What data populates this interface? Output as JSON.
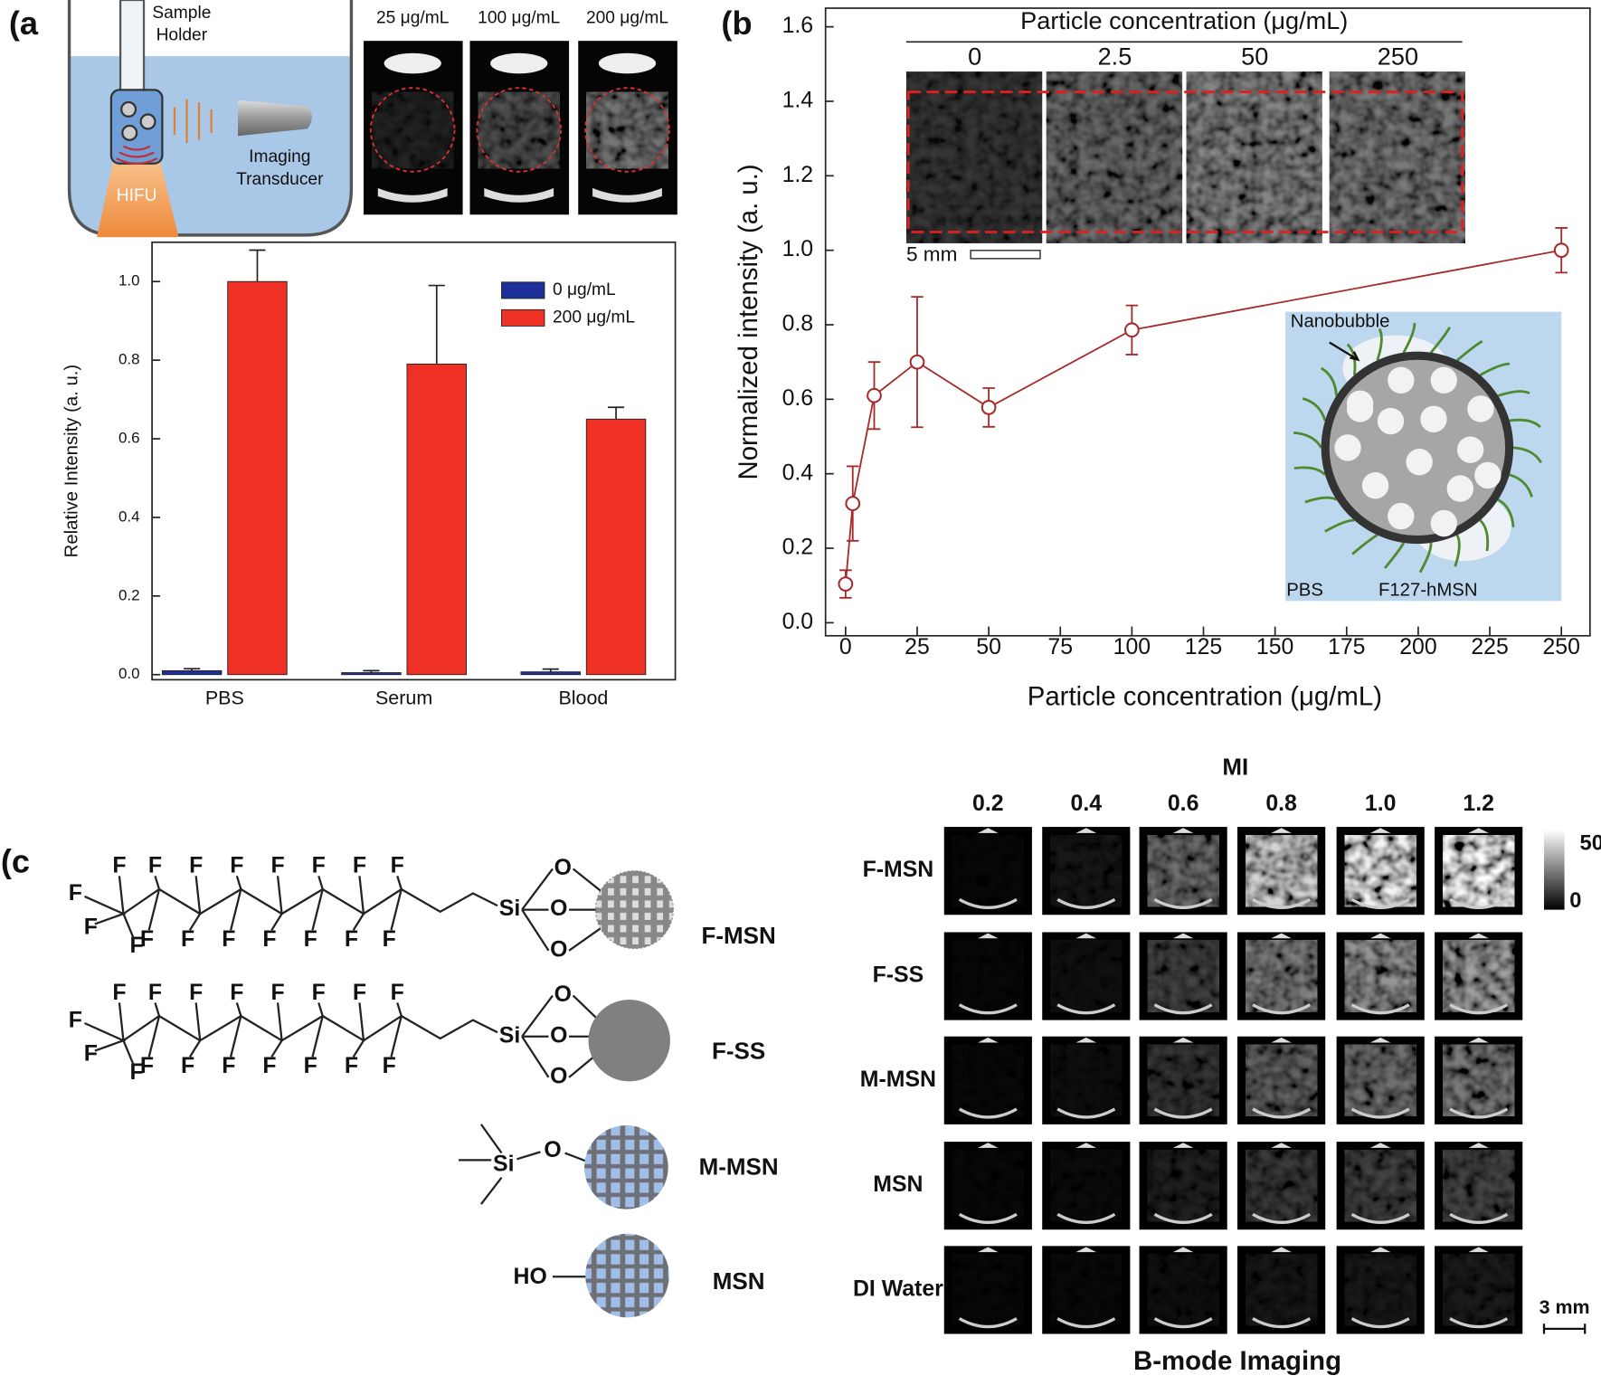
{
  "figure": {
    "panel_labels": [
      "(a",
      "(b",
      "(c"
    ]
  },
  "panel_a": {
    "schematic": {
      "sample_holder": [
        "Sample",
        "Holder"
      ],
      "transducer": [
        "Imaging",
        "Transducer"
      ],
      "hifu": "HIFU"
    },
    "images": [
      "25 μg/mL",
      "100 μg/mL",
      "200 μg/mL"
    ]
  },
  "chart_data": [
    {
      "type": "bar",
      "ylabel": "Relative Intensity (a. u.)",
      "categories": [
        "PBS",
        "Serum",
        "Blood"
      ],
      "series": [
        {
          "name": "0 μg/mL",
          "color": "#1f2f99",
          "values": [
            0.01,
            0.005,
            0.007
          ],
          "errors": [
            0.005,
            0.005,
            0.007
          ]
        },
        {
          "name": "200 μg/mL",
          "color": "#ee3124",
          "values": [
            1.0,
            0.79,
            0.65
          ],
          "errors": [
            0.08,
            0.2,
            0.03
          ]
        }
      ],
      "ylim": [
        -0.013,
        1.1
      ],
      "yticks": [
        {
          "value": 0,
          "label": "0.0"
        },
        0.2,
        0.4,
        0.6,
        0.8,
        {
          "value": 1,
          "label": "1.0"
        }
      ],
      "legend": "upper right"
    },
    {
      "type": "line",
      "xlabel": "Particle concentration (μg/mL)",
      "ylabel": "Normalized intensity (a. u.)",
      "color": "#a52a2a",
      "x": [
        0,
        2.5,
        10,
        25,
        50,
        100,
        250
      ],
      "values": [
        0.104,
        0.32,
        0.61,
        0.7,
        0.578,
        0.786,
        1.0
      ],
      "errors": [
        0.037,
        0.1,
        0.09,
        0.175,
        0.052,
        0.066,
        0.06
      ],
      "xlim": [
        -7,
        260
      ],
      "ylim": [
        -0.035,
        1.65
      ],
      "xticks": [
        0,
        25,
        50,
        75,
        100,
        125,
        150,
        175,
        200,
        225,
        250
      ],
      "yticks": [
        {
          "value": 0,
          "label": "0.0"
        },
        0.2,
        0.4,
        0.6,
        0.8,
        {
          "value": 1,
          "label": "1.0"
        },
        1.2,
        1.4,
        1.6
      ]
    }
  ],
  "panel_b": {
    "inset_title": "Particle concentration (μg/mL)",
    "inset_labels": [
      "0",
      "2.5",
      "50",
      "250"
    ],
    "scale_bar": "5 mm",
    "diagram": {
      "nanobubble": "Nanobubble",
      "medium": "PBS",
      "particle": "F127-hMSN"
    }
  },
  "panel_c": {
    "atoms": {
      "F": "F",
      "Si": "Si",
      "O": "O",
      "HO": "HO"
    },
    "structures": [
      "F-MSN",
      "F-SS",
      "M-MSN",
      "MSN"
    ],
    "bmode": {
      "axis_title": "MI",
      "columns": [
        "0.2",
        "0.4",
        "0.6",
        "0.8",
        "1.0",
        "1.2"
      ],
      "rows": [
        "F-MSN",
        "F-SS",
        "M-MSN",
        "MSN",
        "DI Water"
      ],
      "colorbar": [
        "50",
        "0"
      ],
      "scale_bar": "3 mm",
      "title": "B-mode Imaging"
    }
  }
}
